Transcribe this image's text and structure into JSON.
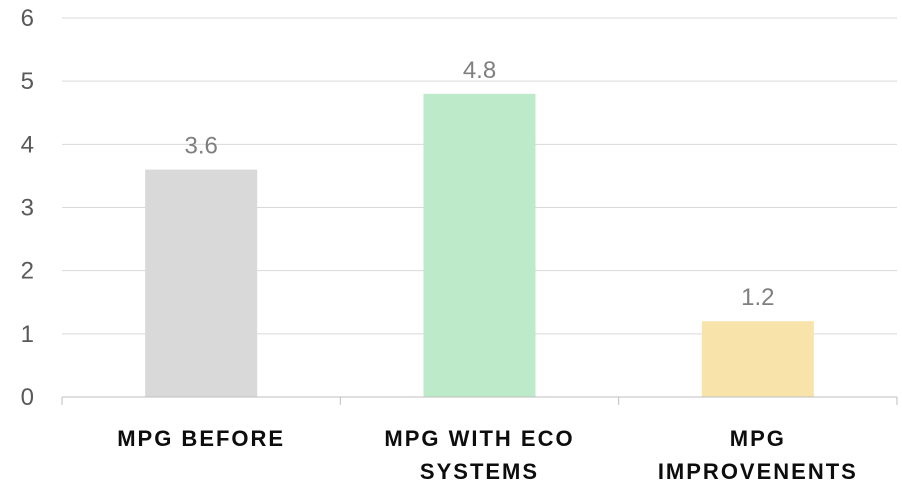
{
  "chart_data": {
    "type": "bar",
    "categories": [
      "MPG BEFORE",
      "MPG WITH ECO SYSTEMS",
      "MPG IMPROVENENTS"
    ],
    "category_lines": [
      [
        "MPG BEFORE"
      ],
      [
        "MPG WITH ECO",
        "SYSTEMS"
      ],
      [
        "MPG",
        "IMPROVENENTS"
      ]
    ],
    "values": [
      3.6,
      4.8,
      1.2
    ],
    "data_labels": [
      "3.6",
      "4.8",
      "1.2"
    ],
    "bar_colors": [
      "#d9d9d9",
      "#bdeac8",
      "#f8e3aa"
    ],
    "ylim": [
      0,
      6
    ],
    "yticks": [
      "0",
      "1",
      "2",
      "3",
      "4",
      "5",
      "6"
    ],
    "grid": true,
    "title": "",
    "xlabel": "",
    "ylabel": ""
  }
}
